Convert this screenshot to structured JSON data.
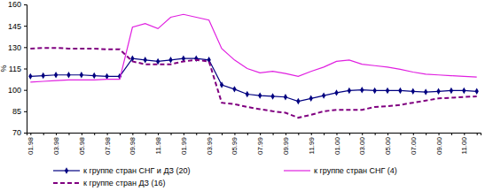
{
  "chart_data": {
    "type": "line",
    "y_label": "%",
    "categories": [
      "01.98",
      null,
      "03.98",
      null,
      "05.98",
      null,
      "07.98",
      null,
      "09.98",
      null,
      "11.98",
      null,
      "01.99",
      null,
      "03.99",
      null,
      "05.99",
      null,
      "07.99",
      null,
      "09.99",
      null,
      "11.99",
      null,
      "01.00",
      null,
      "03.00",
      null,
      "05.00",
      null,
      "07.00",
      null,
      "09.00",
      null,
      "11.00",
      null
    ],
    "ylim": [
      70,
      160
    ],
    "yticks": [
      70,
      85,
      100,
      115,
      130,
      145,
      160
    ],
    "grid": false,
    "legend": "bottom",
    "series": [
      {
        "name": "к группе стран СНГ и ДЗ (20)",
        "color": "#000080",
        "marker": "diamond",
        "line_style": "solid",
        "values": [
          109.5,
          110,
          110.5,
          110.5,
          110.5,
          110,
          109.5,
          109.5,
          122,
          121,
          120,
          121,
          122,
          122,
          121,
          103.5,
          100.5,
          97,
          96,
          95.5,
          95,
          92,
          94,
          96,
          98,
          99.5,
          100,
          99.5,
          99.5,
          99.5,
          99,
          98.5,
          99,
          99.5,
          99.5,
          99
        ]
      },
      {
        "name": "к группе стран СНГ (4)",
        "color": "#e020e0",
        "line_style": "solid",
        "values": [
          105.5,
          106,
          106.5,
          107,
          107,
          107,
          107.5,
          107.5,
          144,
          146.5,
          143,
          151,
          153,
          151,
          149,
          129,
          121,
          115,
          112,
          113,
          111.5,
          109.5,
          113,
          116,
          120,
          121,
          118,
          117,
          116,
          114.5,
          112.5,
          111,
          110.5,
          110,
          109.5,
          109
        ]
      },
      {
        "name": "к группе стран ДЗ (16)",
        "color": "#800080",
        "line_style": "dashed",
        "values": [
          129,
          129.5,
          129.5,
          129,
          129,
          129,
          128.5,
          128.5,
          120,
          118,
          118,
          118,
          120,
          121,
          120,
          91,
          90,
          88,
          86.5,
          85,
          84,
          80.5,
          82.5,
          85,
          86,
          86,
          86,
          88,
          88.5,
          89.5,
          91,
          92.5,
          94,
          94.5,
          95,
          95.5
        ]
      }
    ]
  }
}
